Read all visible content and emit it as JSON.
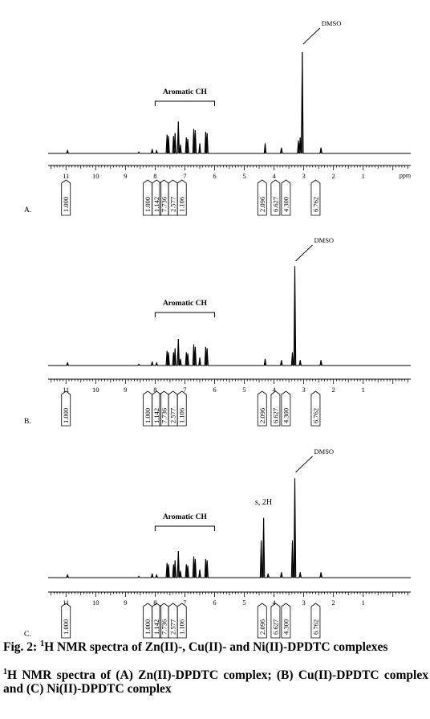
{
  "chart_data": [
    {
      "type": "line",
      "panel_label": "A.",
      "xaxis_unit": "ppm",
      "xlim": [
        11.6,
        -0.6
      ],
      "x_ticks": [
        11,
        10,
        9,
        8,
        7,
        6,
        5,
        4,
        3,
        2,
        1
      ],
      "bracket_label": "Aromatic CH",
      "bracket_range": [
        8.0,
        6.0
      ],
      "annotations": [
        {
          "text": "DMSO",
          "x": 3.05
        }
      ],
      "peaks": [
        {
          "x": 10.95,
          "y": 0.02
        },
        {
          "x": 8.55,
          "y": 0.01
        },
        {
          "x": 8.1,
          "y": 0.03
        },
        {
          "x": 7.95,
          "y": 0.02
        },
        {
          "x": 7.6,
          "y": 0.13
        },
        {
          "x": 7.55,
          "y": 0.12
        },
        {
          "x": 7.38,
          "y": 0.12
        },
        {
          "x": 7.33,
          "y": 0.14
        },
        {
          "x": 7.22,
          "y": 0.22
        },
        {
          "x": 7.15,
          "y": 0.06
        },
        {
          "x": 6.95,
          "y": 0.11
        },
        {
          "x": 6.9,
          "y": 0.1
        },
        {
          "x": 6.7,
          "y": 0.17
        },
        {
          "x": 6.65,
          "y": 0.16
        },
        {
          "x": 6.5,
          "y": 0.07
        },
        {
          "x": 6.3,
          "y": 0.15
        },
        {
          "x": 6.25,
          "y": 0.14
        },
        {
          "x": 4.3,
          "y": 0.07
        },
        {
          "x": 3.75,
          "y": 0.04
        },
        {
          "x": 3.18,
          "y": 0.09
        },
        {
          "x": 3.12,
          "y": 0.11
        },
        {
          "x": 3.05,
          "y": 0.7
        },
        {
          "x": 2.42,
          "y": 0.04
        }
      ],
      "integrals": [
        {
          "x": 11.0,
          "value": "1.000"
        },
        {
          "x": 8.25,
          "value": "1.000"
        },
        {
          "x": 7.95,
          "value": "1.142"
        },
        {
          "x": 7.7,
          "value": "7.736"
        },
        {
          "x": 7.4,
          "value": "2.577"
        },
        {
          "x": 7.1,
          "value": "1.106"
        },
        {
          "x": 4.4,
          "value": "2.096"
        },
        {
          "x": 3.95,
          "value": "6.627"
        },
        {
          "x": 3.6,
          "value": "4.300"
        },
        {
          "x": 2.6,
          "value": "6.762"
        }
      ]
    },
    {
      "type": "line",
      "panel_label": "B.",
      "xaxis_unit": "",
      "xlim": [
        11.6,
        -0.6
      ],
      "x_ticks": [
        11,
        10,
        9,
        8,
        7,
        6,
        5,
        4,
        3,
        2,
        1
      ],
      "bracket_label": "Aromatic CH",
      "bracket_range": [
        8.0,
        6.0
      ],
      "annotations": [
        {
          "text": "DMSO",
          "x": 3.3
        }
      ],
      "peaks": [
        {
          "x": 10.95,
          "y": 0.02
        },
        {
          "x": 8.55,
          "y": 0.01
        },
        {
          "x": 8.1,
          "y": 0.03
        },
        {
          "x": 7.95,
          "y": 0.02
        },
        {
          "x": 7.6,
          "y": 0.11
        },
        {
          "x": 7.55,
          "y": 0.1
        },
        {
          "x": 7.38,
          "y": 0.1
        },
        {
          "x": 7.33,
          "y": 0.13
        },
        {
          "x": 7.22,
          "y": 0.2
        },
        {
          "x": 7.15,
          "y": 0.05
        },
        {
          "x": 6.95,
          "y": 0.1
        },
        {
          "x": 6.9,
          "y": 0.09
        },
        {
          "x": 6.7,
          "y": 0.16
        },
        {
          "x": 6.65,
          "y": 0.14
        },
        {
          "x": 6.5,
          "y": 0.06
        },
        {
          "x": 6.3,
          "y": 0.14
        },
        {
          "x": 6.25,
          "y": 0.13
        },
        {
          "x": 4.3,
          "y": 0.05
        },
        {
          "x": 3.75,
          "y": 0.04
        },
        {
          "x": 3.38,
          "y": 0.1
        },
        {
          "x": 3.3,
          "y": 0.75
        },
        {
          "x": 3.12,
          "y": 0.04
        },
        {
          "x": 2.42,
          "y": 0.04
        }
      ],
      "integrals": [
        {
          "x": 11.0,
          "value": "1.000"
        },
        {
          "x": 8.25,
          "value": "1.000"
        },
        {
          "x": 7.95,
          "value": "1.142"
        },
        {
          "x": 7.7,
          "value": "7.736"
        },
        {
          "x": 7.4,
          "value": "2.577"
        },
        {
          "x": 7.1,
          "value": "1.106"
        },
        {
          "x": 4.4,
          "value": "2.096"
        },
        {
          "x": 3.95,
          "value": "6.627"
        },
        {
          "x": 3.6,
          "value": "4.300"
        },
        {
          "x": 2.6,
          "value": "6.762"
        }
      ]
    },
    {
      "type": "line",
      "panel_label": "C.",
      "xaxis_unit": "",
      "xlim": [
        11.6,
        -0.6
      ],
      "x_ticks": [
        11,
        10,
        9,
        8,
        7,
        6,
        5,
        4,
        3,
        2,
        1
      ],
      "bracket_label": "Aromatic CH",
      "bracket_range": [
        8.0,
        6.0
      ],
      "annotations": [
        {
          "text": "s, 2H",
          "x": 4.35
        },
        {
          "text": "DMSO",
          "x": 3.3
        }
      ],
      "peaks": [
        {
          "x": 10.95,
          "y": 0.02
        },
        {
          "x": 8.55,
          "y": 0.01
        },
        {
          "x": 8.1,
          "y": 0.03
        },
        {
          "x": 7.95,
          "y": 0.02
        },
        {
          "x": 7.6,
          "y": 0.11
        },
        {
          "x": 7.55,
          "y": 0.1
        },
        {
          "x": 7.38,
          "y": 0.1
        },
        {
          "x": 7.33,
          "y": 0.13
        },
        {
          "x": 7.22,
          "y": 0.2
        },
        {
          "x": 7.15,
          "y": 0.05
        },
        {
          "x": 6.95,
          "y": 0.1
        },
        {
          "x": 6.9,
          "y": 0.09
        },
        {
          "x": 6.7,
          "y": 0.16
        },
        {
          "x": 6.65,
          "y": 0.14
        },
        {
          "x": 6.5,
          "y": 0.06
        },
        {
          "x": 6.3,
          "y": 0.14
        },
        {
          "x": 6.25,
          "y": 0.13
        },
        {
          "x": 4.43,
          "y": 0.28
        },
        {
          "x": 4.35,
          "y": 0.45
        },
        {
          "x": 4.2,
          "y": 0.03
        },
        {
          "x": 3.75,
          "y": 0.04
        },
        {
          "x": 3.38,
          "y": 0.28
        },
        {
          "x": 3.3,
          "y": 0.75
        },
        {
          "x": 3.12,
          "y": 0.04
        },
        {
          "x": 2.42,
          "y": 0.04
        }
      ],
      "integrals": [
        {
          "x": 11.0,
          "value": "1.000"
        },
        {
          "x": 8.25,
          "value": "1.000"
        },
        {
          "x": 7.95,
          "value": "1.142"
        },
        {
          "x": 7.7,
          "value": "7.736"
        },
        {
          "x": 7.4,
          "value": "2.577"
        },
        {
          "x": 7.1,
          "value": "1.106"
        },
        {
          "x": 4.4,
          "value": "2.096"
        },
        {
          "x": 3.95,
          "value": "6.627"
        },
        {
          "x": 3.6,
          "value": "4.300"
        },
        {
          "x": 2.6,
          "value": "6.762"
        }
      ]
    }
  ],
  "caption": {
    "line1_sup": "1",
    "line1_rest": "H NMR spectra of Zn(II)-, Cu(II)- and Ni(II)-DPDTC complexes",
    "line1_prefix": "Fig. 2: ",
    "line2_sup": "1",
    "line2_rest": "H NMR spectra of (A) Zn(II)-DPDTC complex; (B) Cu(II)-DPDTC complex and (C) Ni(II)-DPDTC complex"
  }
}
